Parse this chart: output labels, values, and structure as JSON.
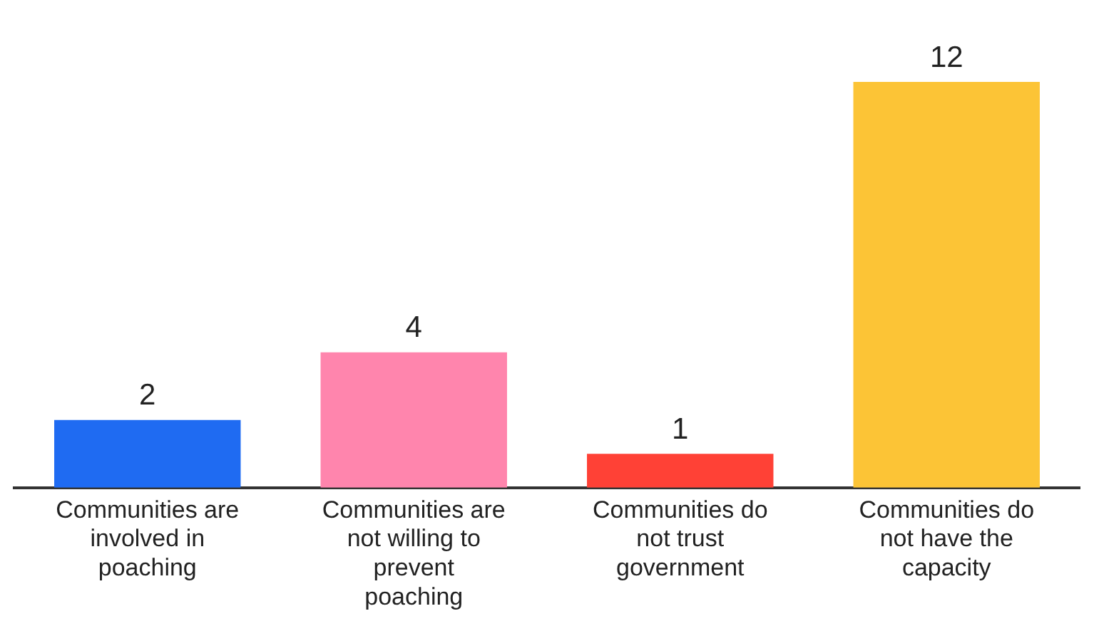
{
  "chart_data": {
    "type": "bar",
    "categories": [
      "Communities are involved in poaching",
      "Communities are not willing to prevent poaching",
      "Communities do not trust government",
      "Communities do not have the capacity"
    ],
    "values": [
      2,
      4,
      1,
      12
    ],
    "colors": [
      "#1f6bf2",
      "#ff85ad",
      "#ff4136",
      "#fcc436"
    ],
    "data_labels": true,
    "grid": false,
    "legend": false
  }
}
